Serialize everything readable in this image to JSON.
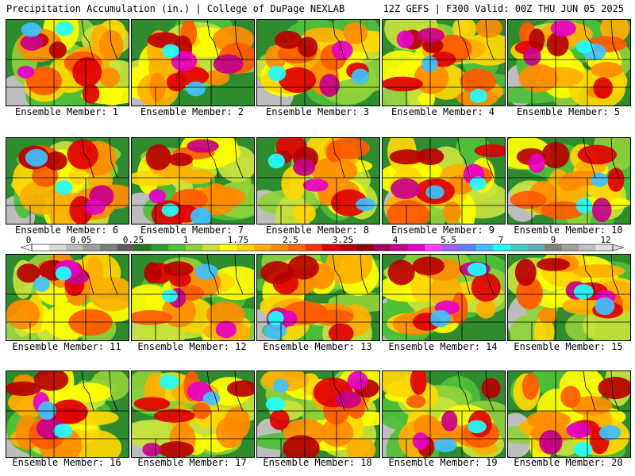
{
  "header": {
    "left_title": "Precipitation Accumulation (in.) | College of DuPage NEXLAB",
    "right_title": "12Z GEFS | F300 Valid: 00Z THU JUN 05 2025"
  },
  "colorbar": {
    "labels": [
      "0",
      "0.05",
      "0.25",
      "1",
      "1.75",
      "2.5",
      "3.25",
      "4",
      "5.5",
      "7",
      "9",
      "12"
    ],
    "colors": [
      "#ffffff",
      "#d9d9d9",
      "#bdbdbd",
      "#9e9e9e",
      "#7d7d7d",
      "#5c5c5c",
      "#1f7a1f",
      "#2e9e2e",
      "#4fbf3a",
      "#8fd13a",
      "#c8e23c",
      "#ffff00",
      "#ffd700",
      "#ffb000",
      "#ff8c00",
      "#ff6a00",
      "#ff3000",
      "#e00000",
      "#b80000",
      "#900000",
      "#a0005a",
      "#c8008c",
      "#e600c8",
      "#ff40ff",
      "#a060ff",
      "#6080ff",
      "#40c0ff",
      "#20ffff",
      "#40d0c0",
      "#60b0b0",
      "#808080",
      "#a0a0a0",
      "#c0c0c0",
      "#e0e0e0"
    ]
  },
  "members": [
    {
      "caption": "Ensemble Member: 1"
    },
    {
      "caption": "Ensemble Member: 2"
    },
    {
      "caption": "Ensemble Member: 3"
    },
    {
      "caption": "Ensemble Member: 4"
    },
    {
      "caption": "Ensemble Member: 5"
    },
    {
      "caption": "Ensemble Member: 6"
    },
    {
      "caption": "Ensemble Member: 7"
    },
    {
      "caption": "Ensemble Member: 8"
    },
    {
      "caption": "Ensemble Member: 9"
    },
    {
      "caption": "Ensemble Member: 10"
    },
    {
      "caption": "Ensemble Member: 11"
    },
    {
      "caption": "Ensemble Member: 12"
    },
    {
      "caption": "Ensemble Member: 13"
    },
    {
      "caption": "Ensemble Member: 14"
    },
    {
      "caption": "Ensemble Member: 15"
    },
    {
      "caption": "Ensemble Member: 16"
    },
    {
      "caption": "Ensemble Member: 17"
    },
    {
      "caption": "Ensemble Member: 18"
    },
    {
      "caption": "Ensemble Member: 19"
    },
    {
      "caption": "Ensemble Member: 20"
    }
  ]
}
